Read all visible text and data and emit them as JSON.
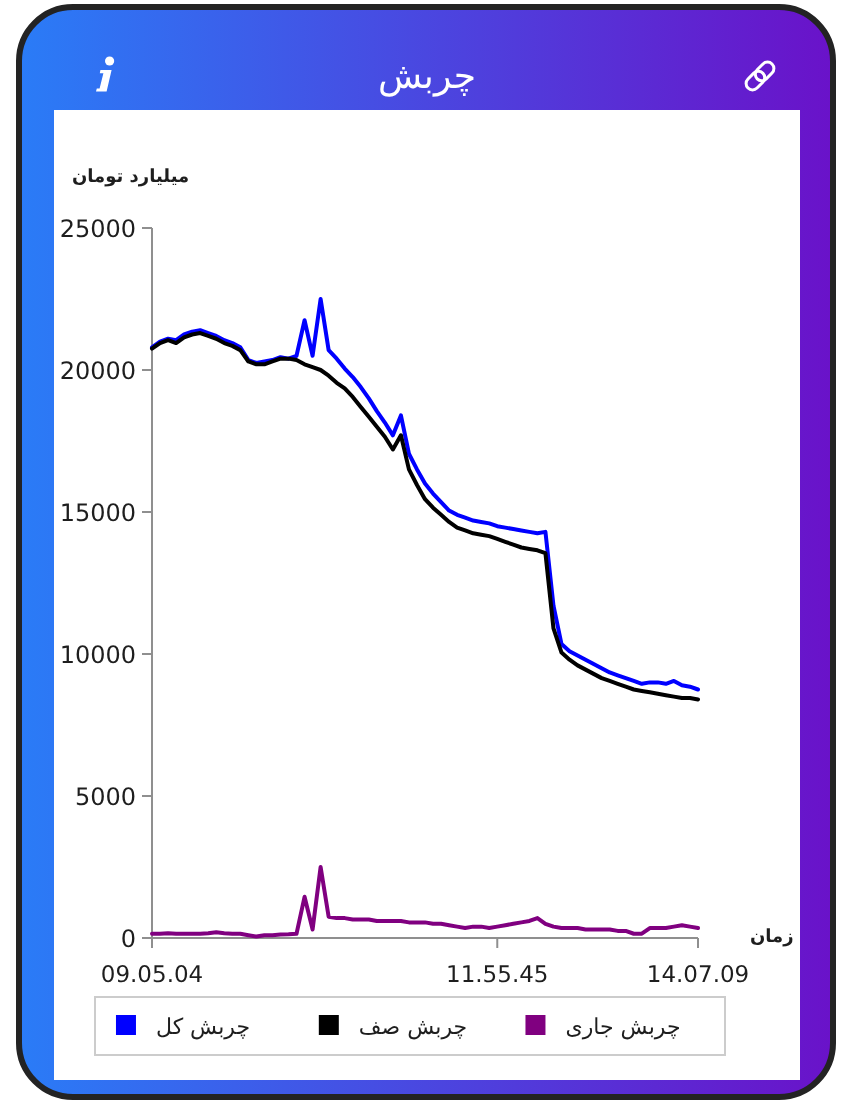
{
  "chart_data": {
    "type": "line",
    "title": "چربش",
    "ylabel": "میلیارد تومان",
    "xlabel": "زمان",
    "categories": [
      "09.05.04",
      null,
      null,
      null,
      null,
      null,
      null,
      null,
      null,
      null,
      null,
      null,
      null,
      null,
      null,
      null,
      null,
      null,
      null,
      null,
      null,
      null,
      null,
      null,
      null,
      null,
      null,
      null,
      null,
      null,
      null,
      null,
      null,
      null,
      null,
      null,
      null,
      null,
      null,
      null,
      null,
      null,
      null,
      "11.55.45",
      null,
      null,
      null,
      null,
      null,
      null,
      null,
      null,
      null,
      null,
      null,
      null,
      null,
      null,
      null,
      null,
      null,
      null,
      null,
      null,
      null,
      null,
      null,
      null,
      "14.07.09"
    ],
    "series": [
      {
        "name": "چربش کل",
        "color": "#0000ff",
        "values": [
          20800,
          21000,
          21100,
          21050,
          21250,
          21350,
          21400,
          21300,
          21200,
          21050,
          20950,
          20800,
          20350,
          20250,
          20300,
          20350,
          20450,
          20400,
          20500,
          21750,
          20500,
          22500,
          20700,
          20400,
          20050,
          19750,
          19400,
          19000,
          18550,
          18150,
          17700,
          18400,
          17050,
          16500,
          16000,
          15650,
          15350,
          15050,
          14900,
          14800,
          14700,
          14650,
          14600,
          14500,
          14450,
          14400,
          14350,
          14300,
          14250,
          14300,
          11700,
          10350,
          10100,
          9950,
          9800,
          9650,
          9500,
          9350,
          9250,
          9150,
          9050,
          8950,
          9000,
          9000,
          8950,
          9050,
          8900,
          8850,
          8750
        ]
      },
      {
        "name": "چربش صف",
        "color": "#000000",
        "values": [
          20750,
          20950,
          21050,
          20950,
          21150,
          21250,
          21300,
          21200,
          21100,
          20950,
          20850,
          20700,
          20300,
          20200,
          20200,
          20300,
          20400,
          20400,
          20350,
          20200,
          20100,
          20000,
          19800,
          19550,
          19350,
          19050,
          18700,
          18350,
          18000,
          17650,
          17200,
          17700,
          16500,
          15950,
          15450,
          15150,
          14900,
          14650,
          14450,
          14350,
          14250,
          14200,
          14150,
          14050,
          13950,
          13850,
          13750,
          13700,
          13650,
          13550,
          10900,
          10050,
          9800,
          9600,
          9450,
          9300,
          9150,
          9050,
          8950,
          8850,
          8750,
          8700,
          8650,
          8600,
          8550,
          8500,
          8450,
          8450,
          8400
        ]
      },
      {
        "name": "چربش جاری",
        "color": "#800080",
        "values": [
          150,
          150,
          170,
          150,
          150,
          150,
          150,
          170,
          200,
          170,
          150,
          150,
          100,
          50,
          100,
          100,
          120,
          130,
          150,
          1450,
          300,
          2500,
          750,
          700,
          700,
          650,
          650,
          650,
          600,
          600,
          600,
          600,
          550,
          550,
          550,
          500,
          500,
          450,
          400,
          350,
          400,
          400,
          350,
          400,
          450,
          500,
          550,
          600,
          700,
          500,
          400,
          350,
          350,
          350,
          300,
          300,
          300,
          300,
          250,
          250,
          150,
          150,
          350,
          350,
          350,
          400,
          450,
          400,
          350
        ]
      }
    ],
    "ylim": [
      0,
      25000
    ],
    "yticks": [
      0,
      5000,
      10000,
      15000,
      20000,
      25000
    ],
    "legend": "bottom",
    "line_style": "solid"
  }
}
